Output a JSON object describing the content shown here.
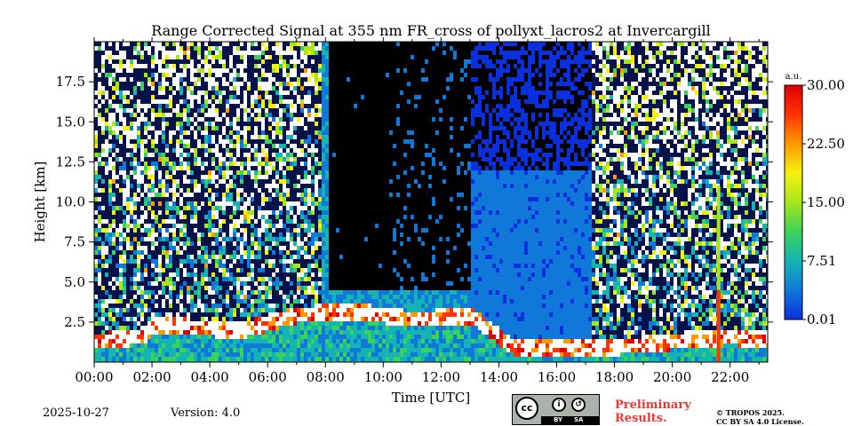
{
  "chart_data": {
    "type": "heatmap",
    "title": "Range Corrected Signal at 355 nm FR_cross of pollyxt_lacros2 at Invercargill",
    "xlabel": "Time [UTC]",
    "ylabel": "Height [km]",
    "xlim": [
      0,
      23.3
    ],
    "ylim": [
      0,
      20
    ],
    "x_ticks": [
      "00:00",
      "02:00",
      "04:00",
      "06:00",
      "08:00",
      "10:00",
      "12:00",
      "14:00",
      "16:00",
      "18:00",
      "20:00",
      "22:00"
    ],
    "x_tick_values": [
      0,
      2,
      4,
      6,
      8,
      10,
      12,
      14,
      16,
      18,
      20,
      22
    ],
    "y_ticks": [
      "2.5",
      "5.0",
      "7.5",
      "10.0",
      "12.5",
      "15.0",
      "17.5"
    ],
    "y_tick_values": [
      2.5,
      5.0,
      7.5,
      10.0,
      12.5,
      15.0,
      17.5
    ],
    "colorbar": {
      "unit": "a.u.",
      "min": 0.01,
      "max": 30.0,
      "ticks": [
        "0.01",
        "7.51",
        "15.00",
        "22.50",
        "30.00"
      ],
      "tick_values": [
        0.01,
        7.51,
        15.0,
        22.5,
        30.0
      ],
      "colors": [
        "#0a2fdf",
        "#0f78d8",
        "#15b4b4",
        "#3bd25c",
        "#a6e61a",
        "#f6f20e",
        "#ff9a00",
        "#ff3300",
        "#e00000"
      ]
    },
    "features": {
      "no_data_periods_utc": [
        [
          7.8,
          10.1
        ],
        [
          10.1,
          13.0
        ],
        [
          13.0,
          17.2
        ]
      ],
      "boundary_layer_top_km": [
        [
          0,
          1.9
        ],
        [
          1.7,
          2.3
        ],
        [
          2.0,
          3.0
        ],
        [
          5.0,
          2.6
        ],
        [
          7.0,
          3.6
        ],
        [
          9.0,
          3.8
        ],
        [
          11.0,
          3.3
        ],
        [
          13.0,
          3.5
        ],
        [
          14.5,
          1.5
        ],
        [
          17.5,
          1.5
        ],
        [
          20.0,
          1.9
        ],
        [
          22.0,
          2.2
        ],
        [
          23.3,
          2.0
        ]
      ],
      "cloud_column_utc": 21.6,
      "cloud_column_top_km": 11.0
    }
  },
  "footer": {
    "date": "2025-10-27",
    "version": "Version: 4.0",
    "preliminary_line1": "Preliminary",
    "preliminary_line2": "Results.",
    "copyright_line1": "© TROPOS 2025.",
    "copyright_line2": "CC BY SA 4.0 License.",
    "license_badge": {
      "cc": "cc",
      "by": "BY",
      "sa": "SA",
      "icon_by": "person-icon",
      "icon_sa": "share-alike-icon"
    }
  }
}
